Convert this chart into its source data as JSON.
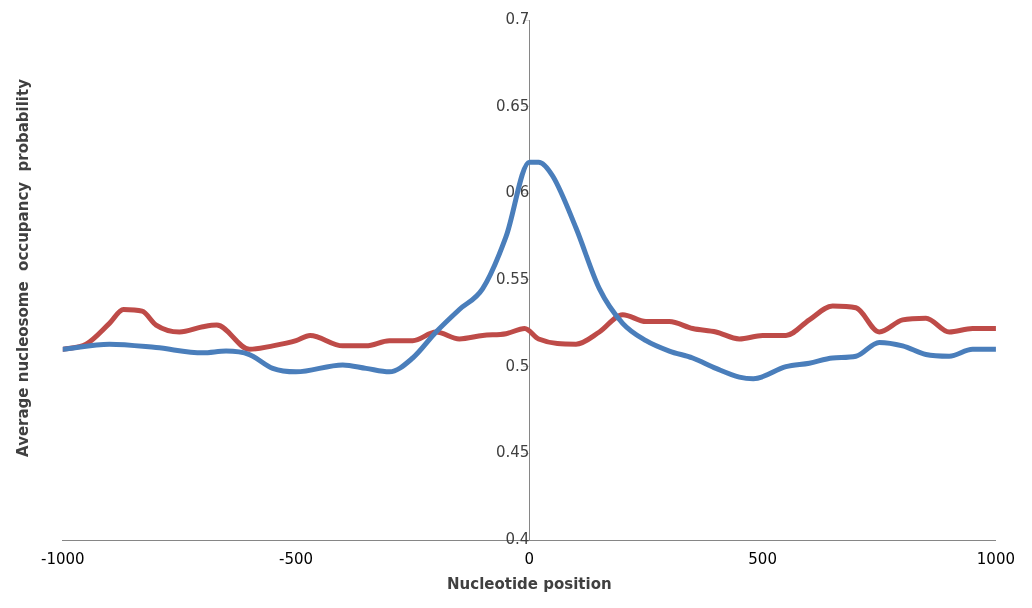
{
  "chart_data": {
    "type": "line",
    "xlabel": "Nucleotide position",
    "ylabel": "Average nucleosome  occupancy  probability",
    "xlim": [
      -1000,
      1000
    ],
    "xticks": [
      -1000,
      -500,
      0,
      500,
      1000
    ],
    "ylim": [
      0.4,
      0.7
    ],
    "yticks": [
      0.4,
      0.45,
      0.5,
      0.55,
      0.6,
      0.65,
      0.7
    ],
    "grid": false,
    "legend": false,
    "marker": "none",
    "line_style": "solid",
    "series": [
      {
        "color": "#4a7ebb",
        "x": [
          -1000,
          -900,
          -800,
          -700,
          -650,
          -600,
          -550,
          -500,
          -400,
          -350,
          -300,
          -250,
          -200,
          -150,
          -100,
          -50,
          0,
          20,
          50,
          100,
          150,
          200,
          250,
          300,
          350,
          400,
          450,
          480,
          550,
          600,
          650,
          700,
          750,
          800,
          850,
          900,
          950,
          1000
        ],
        "values": [
          0.51,
          0.513,
          0.511,
          0.508,
          0.509,
          0.507,
          0.499,
          0.497,
          0.501,
          0.499,
          0.497,
          0.505,
          0.52,
          0.533,
          0.545,
          0.575,
          0.618,
          0.618,
          0.61,
          0.58,
          0.545,
          0.525,
          0.515,
          0.509,
          0.505,
          0.499,
          0.494,
          0.493,
          0.5,
          0.502,
          0.505,
          0.506,
          0.514,
          0.512,
          0.507,
          0.506,
          0.51,
          0.51
        ]
      },
      {
        "color": "#be4b48",
        "x": [
          -1000,
          -950,
          -900,
          -870,
          -830,
          -800,
          -750,
          -700,
          -670,
          -600,
          -550,
          -500,
          -470,
          -400,
          -350,
          -300,
          -250,
          -200,
          -150,
          -100,
          -50,
          -10,
          20,
          100,
          150,
          200,
          250,
          300,
          350,
          400,
          450,
          500,
          550,
          600,
          650,
          700,
          750,
          800,
          850,
          900,
          950,
          1000
        ],
        "values": [
          0.51,
          0.513,
          0.525,
          0.533,
          0.532,
          0.524,
          0.52,
          0.523,
          0.524,
          0.51,
          0.512,
          0.515,
          0.518,
          0.512,
          0.512,
          0.515,
          0.515,
          0.52,
          0.516,
          0.518,
          0.519,
          0.522,
          0.516,
          0.513,
          0.52,
          0.53,
          0.526,
          0.526,
          0.522,
          0.52,
          0.516,
          0.518,
          0.518,
          0.527,
          0.535,
          0.534,
          0.52,
          0.527,
          0.528,
          0.52,
          0.522,
          0.522
        ]
      }
    ]
  }
}
